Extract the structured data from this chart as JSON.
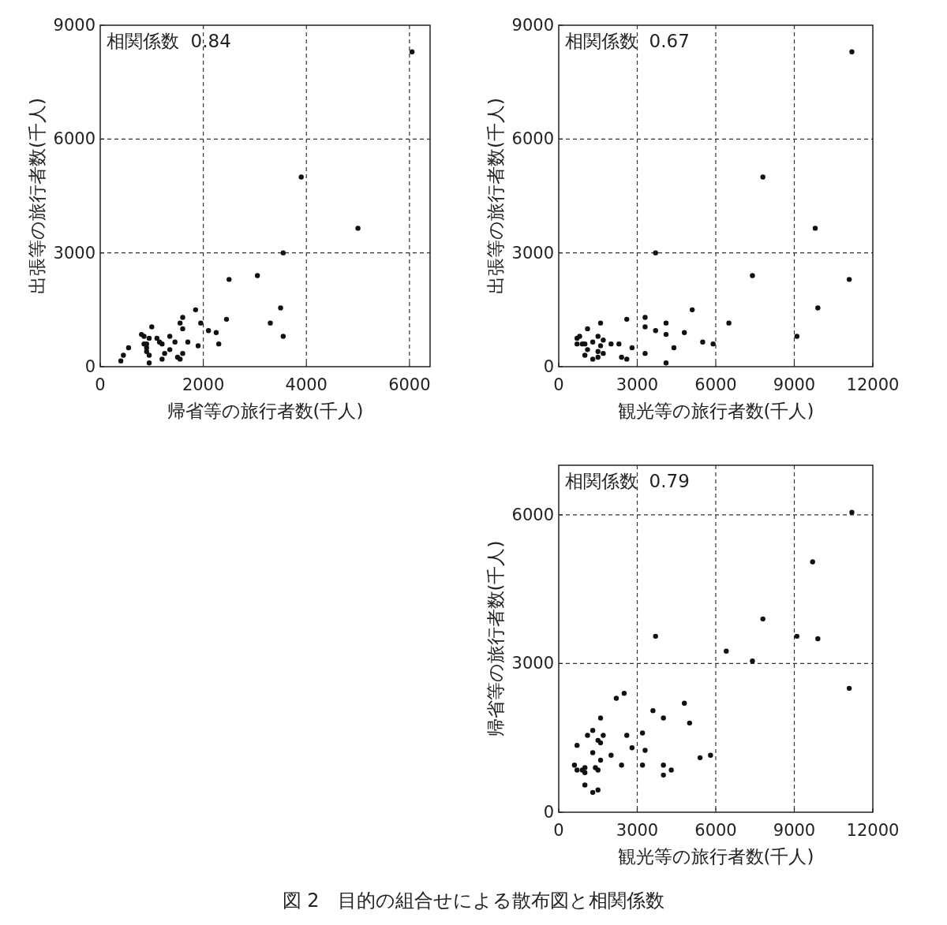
{
  "chart_data": [
    {
      "type": "scatter",
      "xlabel": "帰省等の旅行者数(千人)",
      "ylabel": "出張等の旅行者数(千人)",
      "annotations": [
        "相関係数  0.84"
      ],
      "marker": "circle",
      "grid": true,
      "xlim": [
        0,
        6400
      ],
      "ylim": [
        0,
        9000
      ],
      "xticks": [
        0,
        2000,
        4000,
        6000
      ],
      "yticks": [
        0,
        3000,
        6000,
        9000
      ],
      "series": [
        {
          "color": "#111111",
          "x": [
            400,
            450,
            550,
            800,
            850,
            850,
            900,
            900,
            900,
            950,
            950,
            950,
            1000,
            1100,
            1150,
            1200,
            1200,
            1250,
            1350,
            1350,
            1450,
            1500,
            1550,
            1600,
            1550,
            1600,
            1600,
            1700,
            1850,
            1900,
            1950,
            2100,
            2250,
            2300,
            2450,
            2500,
            3050,
            3300,
            3500,
            3550,
            3550,
            3900,
            5000,
            6050
          ],
          "values": [
            150,
            300,
            500,
            850,
            800,
            600,
            600,
            500,
            400,
            300,
            100,
            750,
            1050,
            750,
            650,
            600,
            200,
            350,
            450,
            800,
            650,
            250,
            200,
            350,
            1150,
            1000,
            1300,
            650,
            1500,
            550,
            1150,
            950,
            900,
            600,
            1250,
            2300,
            2400,
            1150,
            1550,
            800,
            3000,
            5000,
            3650,
            8300
          ]
        }
      ]
    },
    {
      "type": "scatter",
      "xlabel": "観光等の旅行者数(千人)",
      "ylabel": "出張等の旅行者数(千人)",
      "annotations": [
        "相関係数  0.67"
      ],
      "marker": "circle",
      "grid": true,
      "xlim": [
        0,
        12000
      ],
      "ylim": [
        0,
        9000
      ],
      "xticks": [
        0,
        3000,
        6000,
        9000,
        12000
      ],
      "yticks": [
        0,
        3000,
        6000,
        9000
      ],
      "series": [
        {
          "color": "#111111",
          "x": [
            700,
            800,
            700,
            900,
            1000,
            1100,
            1000,
            1100,
            1300,
            1300,
            1500,
            1500,
            1500,
            1600,
            1700,
            1600,
            1700,
            2000,
            2300,
            2400,
            2600,
            2600,
            2800,
            3300,
            3300,
            3300,
            3700,
            4100,
            4100,
            4100,
            4400,
            4800,
            5100,
            5500,
            5900,
            6500,
            7400,
            3700,
            7800,
            9800,
            11200,
            11100,
            9900,
            9100
          ],
          "values": [
            750,
            800,
            600,
            600,
            600,
            450,
            300,
            1000,
            650,
            200,
            400,
            250,
            800,
            550,
            700,
            1150,
            350,
            600,
            600,
            250,
            200,
            1250,
            500,
            1300,
            1050,
            350,
            950,
            1150,
            850,
            100,
            500,
            900,
            1500,
            650,
            600,
            1150,
            2400,
            3000,
            5000,
            3650,
            8300,
            2300,
            1550,
            800
          ]
        }
      ]
    },
    {
      "type": "scatter",
      "xlabel": "観光等の旅行者数(千人)",
      "ylabel": "帰省等の旅行者数(千人)",
      "annotations": [
        "相関係数  0.79",
        "図 2　目的の組合せによる散布図と相関係数"
      ],
      "marker": "circle",
      "grid": true,
      "xlim": [
        0,
        12000
      ],
      "ylim": [
        0,
        7000
      ],
      "xticks": [
        0,
        3000,
        6000,
        9000,
        12000
      ],
      "yticks": [
        0,
        3000,
        6000
      ],
      "series": [
        {
          "color": "#111111",
          "x": [
            600,
            700,
            700,
            900,
            1000,
            1000,
            1000,
            1100,
            1300,
            1300,
            1300,
            1400,
            1500,
            1500,
            1500,
            1600,
            1600,
            1600,
            1700,
            2000,
            2200,
            2400,
            2500,
            2600,
            2800,
            3200,
            3300,
            3200,
            3600,
            4000,
            4000,
            4000,
            4300,
            4800,
            5000,
            5400,
            5800,
            3700,
            6400,
            7400,
            7800,
            9100,
            9900,
            9700,
            11200,
            11100
          ],
          "values": [
            950,
            850,
            1350,
            850,
            900,
            800,
            550,
            1550,
            1650,
            1200,
            400,
            900,
            850,
            450,
            1450,
            1050,
            1900,
            1400,
            1550,
            1150,
            2300,
            950,
            2400,
            1550,
            1300,
            1600,
            1250,
            950,
            2050,
            1900,
            950,
            750,
            850,
            2200,
            1800,
            1100,
            1150,
            3550,
            3250,
            3050,
            3900,
            3550,
            3500,
            5050,
            6050,
            2500
          ]
        }
      ]
    }
  ]
}
